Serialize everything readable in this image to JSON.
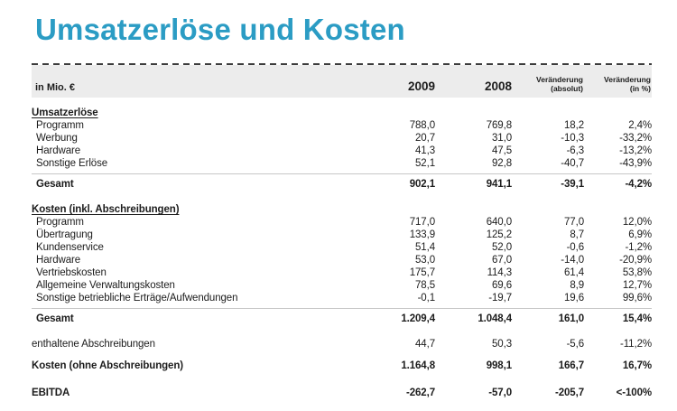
{
  "title": "Umsatzerlöse und Kosten",
  "colors": {
    "title_accent": "#2b9cc4",
    "header_background": "#ececec",
    "body_text": "#1c1c1c",
    "hairline_rule": "#c8c8c8",
    "dashed_rule": "#3c3c3c"
  },
  "table": {
    "unit_label": "in Mio. €",
    "col_2009": "2009",
    "col_2008": "2008",
    "col_change_abs": [
      "Veränderung",
      "(absolut)"
    ],
    "col_change_pct": [
      "Veränderung",
      "(in %)"
    ],
    "rows": [
      {
        "style": "section",
        "label": "Umsatzerlöse"
      },
      {
        "style": "item",
        "label": "Programm",
        "values": [
          "788,0",
          "769,8",
          "18,2",
          "2,4%"
        ]
      },
      {
        "style": "item",
        "label": "Werbung",
        "values": [
          "20,7",
          "31,0",
          "-10,3",
          "-33,2%"
        ]
      },
      {
        "style": "item",
        "label": "Hardware",
        "values": [
          "41,3",
          "47,5",
          "-6,3",
          "-13,2%"
        ]
      },
      {
        "style": "item",
        "label": "Sonstige Erlöse",
        "values": [
          "52,1",
          "92,8",
          "-40,7",
          "-43,9%"
        ]
      },
      {
        "style": "total",
        "label": "Gesamt",
        "values": [
          "902,1",
          "941,1",
          "-39,1",
          "-4,2%"
        ]
      },
      {
        "style": "section",
        "label": "Kosten (inkl. Abschreibungen)"
      },
      {
        "style": "item",
        "label": "Programm",
        "values": [
          "717,0",
          "640,0",
          "77,0",
          "12,0%"
        ]
      },
      {
        "style": "item",
        "label": "Übertragung",
        "values": [
          "133,9",
          "125,2",
          "8,7",
          "6,9%"
        ]
      },
      {
        "style": "item",
        "label": "Kundenservice",
        "values": [
          "51,4",
          "52,0",
          "-0,6",
          "-1,2%"
        ]
      },
      {
        "style": "item",
        "label": "Hardware",
        "values": [
          "53,0",
          "67,0",
          "-14,0",
          "-20,9%"
        ]
      },
      {
        "style": "item",
        "label": "Vertriebskosten",
        "values": [
          "175,7",
          "114,3",
          "61,4",
          "53,8%"
        ]
      },
      {
        "style": "item",
        "label": "Allgemeine Verwaltungskosten",
        "values": [
          "78,5",
          "69,6",
          "8,9",
          "12,7%"
        ]
      },
      {
        "style": "item",
        "label": "Sonstige betriebliche Erträge/Aufwendungen",
        "values": [
          "-0,1",
          "-19,7",
          "19,6",
          "99,6%"
        ]
      },
      {
        "style": "total",
        "label": "Gesamt",
        "values": [
          "1.209,4",
          "1.048,4",
          "161,0",
          "15,4%"
        ]
      },
      {
        "style": "plain",
        "label": "enthaltene Abschreibungen",
        "values": [
          "44,7",
          "50,3",
          "-5,6",
          "-11,2%"
        ]
      },
      {
        "style": "bold",
        "label": "Kosten (ohne Abschreibungen)",
        "values": [
          "1.164,8",
          "998,1",
          "166,7",
          "16,7%"
        ]
      },
      {
        "style": "ebitda",
        "label": "EBITDA",
        "values": [
          "-262,7",
          "-57,0",
          "-205,7",
          "<-100%"
        ]
      }
    ]
  }
}
